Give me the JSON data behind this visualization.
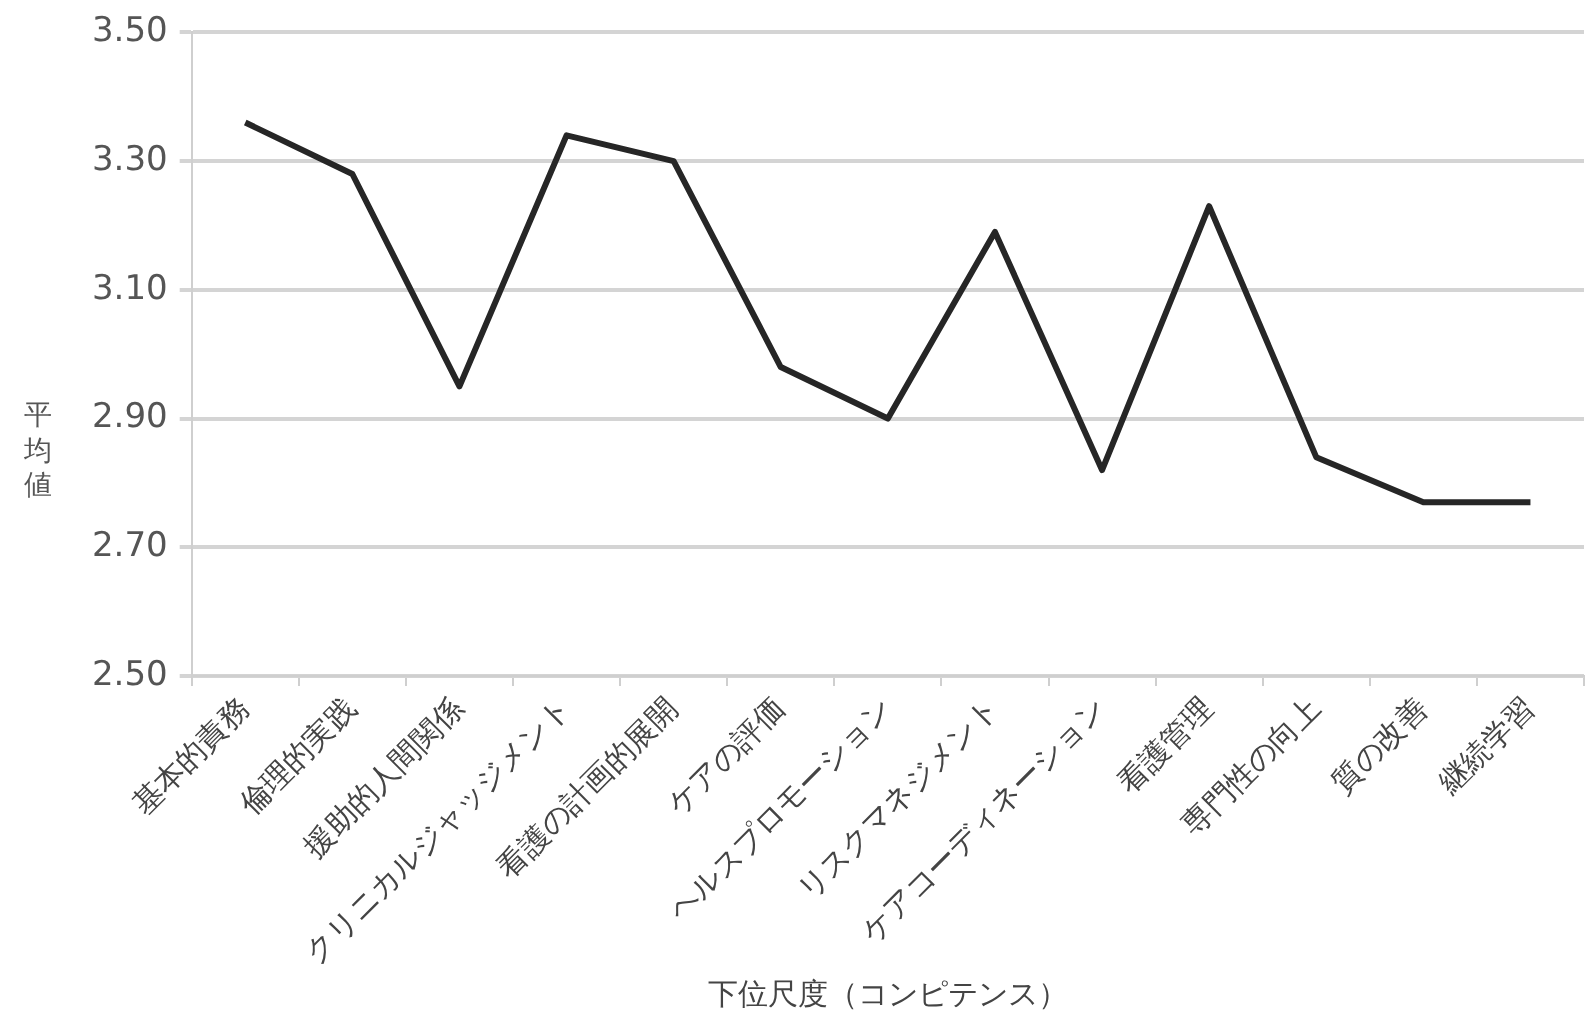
{
  "chart_data": {
    "type": "line",
    "xlabel": "下位尺度（コンピテンス）",
    "ylabel": "平均値",
    "categories": [
      "基本的責務",
      "倫理的実践",
      "援助的人間関係",
      "クリニカルジャッジメント",
      "看護の計画的展開",
      "ケアの評価",
      "ヘルスプロモーション",
      "リスクマネジメント",
      "ケアコーディネーション",
      "看護管理",
      "専門性の向上",
      "質の改善",
      "継続学習"
    ],
    "series": [
      {
        "color": "#262626",
        "values": [
          3.36,
          3.28,
          2.95,
          3.34,
          3.3,
          2.98,
          2.9,
          3.19,
          2.82,
          3.23,
          2.84,
          2.77,
          2.77
        ]
      }
    ],
    "ylim": [
      2.5,
      3.5
    ],
    "yticks": [
      {
        "value": 2.5,
        "label": "2.50"
      },
      {
        "value": 2.7,
        "label": "2.70"
      },
      {
        "value": 2.9,
        "label": "2.90"
      },
      {
        "value": 3.1,
        "label": "3.10"
      },
      {
        "value": 3.3,
        "label": "3.30"
      },
      {
        "value": 3.5,
        "label": "3.50"
      }
    ],
    "grid": "y",
    "marker": "none",
    "line_style": "solid",
    "legend": false
  }
}
